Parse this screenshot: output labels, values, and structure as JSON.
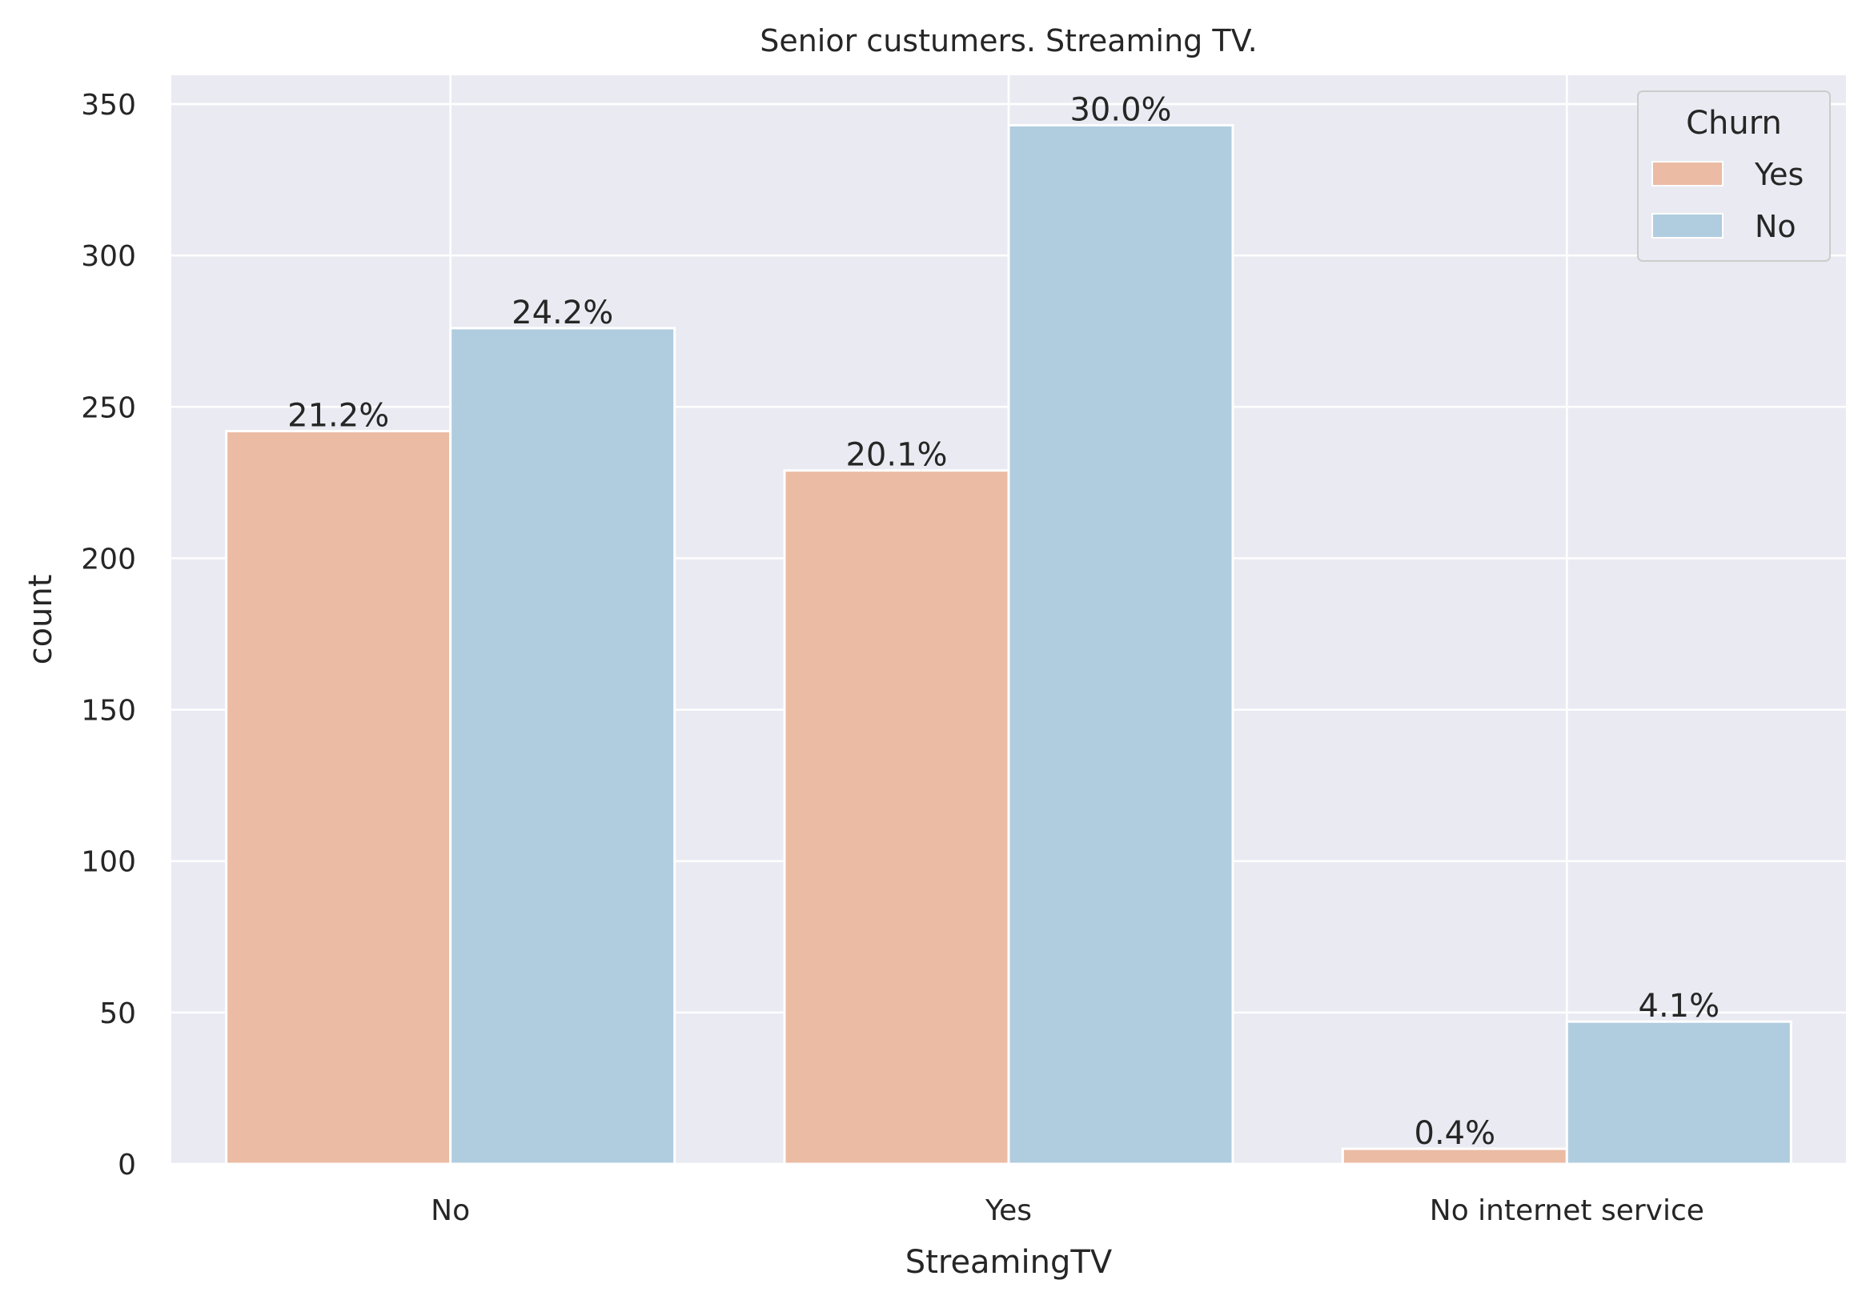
{
  "chart_data": {
    "type": "bar",
    "title": "Senior custumers. Streaming TV.",
    "xlabel": "StreamingTV",
    "ylabel": "count",
    "categories": [
      "No",
      "Yes",
      "No internet service"
    ],
    "ylim": [
      0,
      360
    ],
    "yticks": [
      0,
      50,
      100,
      150,
      200,
      250,
      300,
      350
    ],
    "grid": true,
    "legend": {
      "title": "Churn",
      "position": "top-right"
    },
    "series": [
      {
        "name": "Yes",
        "color": "#ebbba4",
        "values": [
          242,
          229,
          5
        ],
        "labels": [
          "21.2%",
          "20.1%",
          "0.4%"
        ]
      },
      {
        "name": "No",
        "color": "#b0cddf",
        "values": [
          276,
          343,
          47
        ],
        "labels": [
          "24.2%",
          "30.0%",
          "4.1%"
        ]
      }
    ],
    "colors": {
      "plot_background": "#eaeaf2",
      "gridline": "#ffffff",
      "text": "#262626"
    }
  }
}
